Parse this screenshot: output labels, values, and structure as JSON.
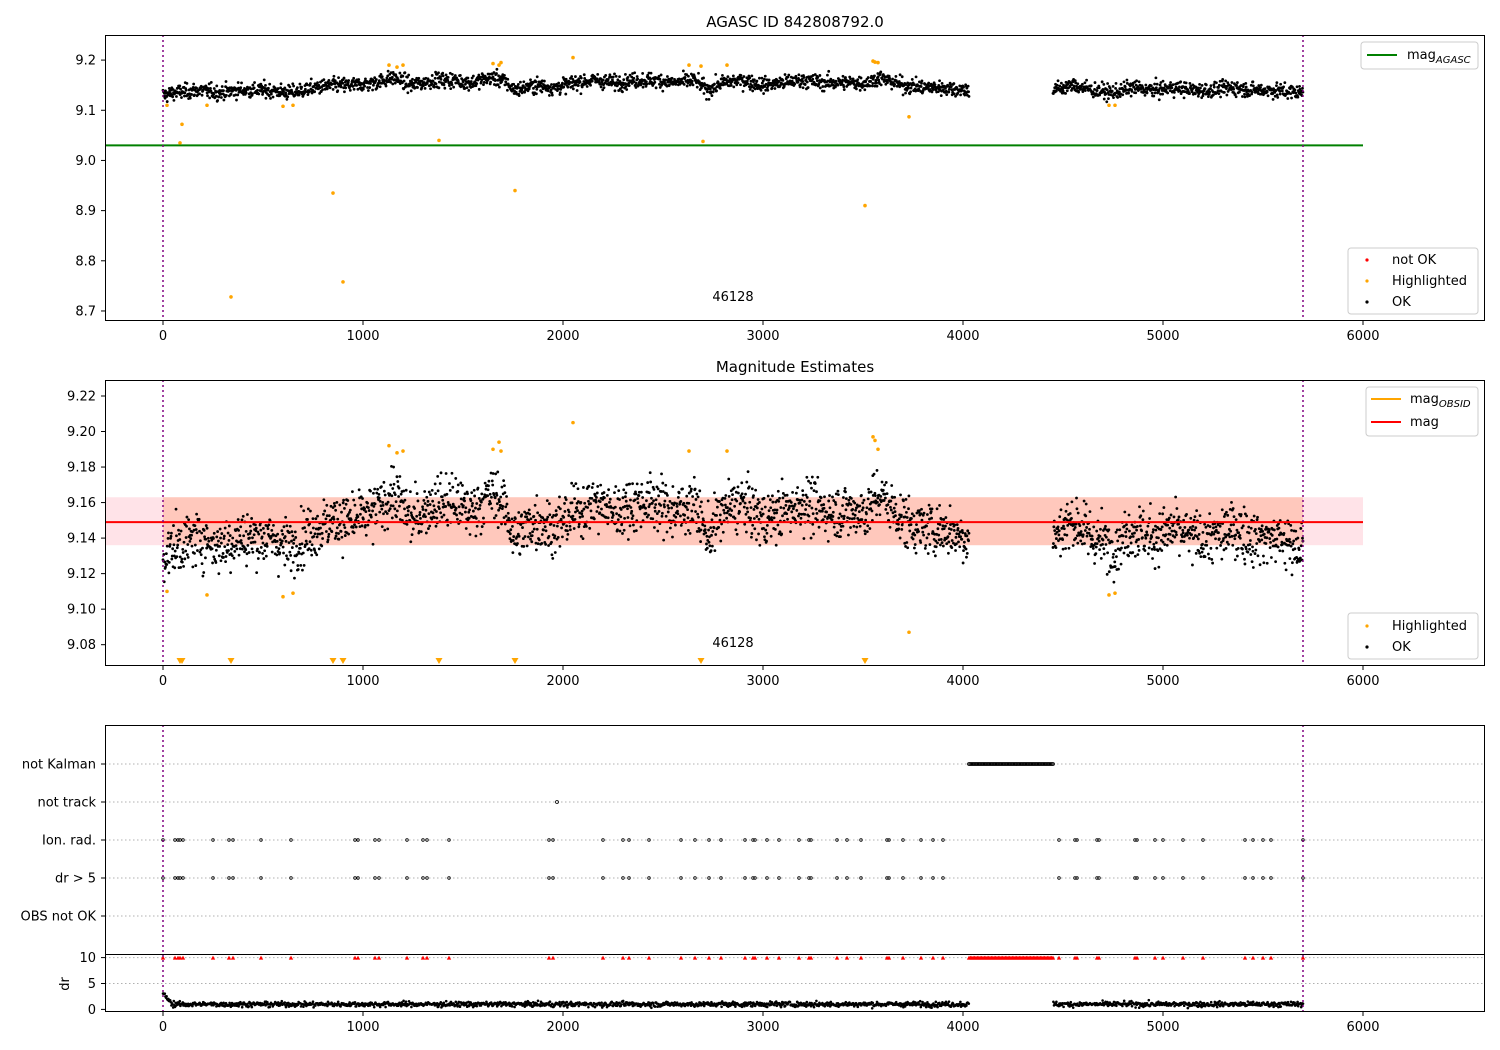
{
  "figure": {
    "background": "#ffffff"
  },
  "colors": {
    "ok": "#000000",
    "highlighted": "#ffa500",
    "not_ok": "#ff0000",
    "agasc_line": "#008000",
    "obsid_line": "#ffa500",
    "mag_line": "#ff0000",
    "band_fill": "#ffc0cb",
    "obs_band_fill": "#ffa07a",
    "epoch_line": "#800080",
    "grid": "#b0b0b0"
  },
  "chart_data": [
    {
      "id": "agasc",
      "type": "scatter",
      "title": "AGASC ID 842808792.0",
      "xlim": [
        -290,
        6610
      ],
      "ylim": [
        8.68,
        9.25
      ],
      "xticks": [
        0,
        1000,
        2000,
        3000,
        4000,
        5000,
        6000
      ],
      "xtick_labels": [
        "0",
        "1000",
        "2000",
        "3000",
        "4000",
        "5000",
        "6000"
      ],
      "yticks": [
        8.7,
        8.8,
        8.9,
        9.0,
        9.1,
        9.2
      ],
      "ytick_labels": [
        "8.7",
        "8.8",
        "8.9",
        "9.0",
        "9.1",
        "9.2"
      ],
      "epoch_lines_x": [
        0,
        5700
      ],
      "annotation": {
        "text": "46128",
        "x": 2850,
        "y": 8.7
      },
      "mag_agasc": {
        "value": 9.03,
        "x_range": [
          -290,
          6000
        ]
      },
      "ok_segments": [
        {
          "x": [
            0,
            60,
            180,
            280,
            380,
            520,
            640,
            760,
            860,
            960,
            1060,
            1150,
            1250,
            1350,
            1450,
            1540,
            1640,
            1700,
            1760,
            1860,
            1960,
            2060,
            2160,
            2260,
            2360,
            2460,
            2560,
            2660,
            2720,
            2800,
            2900,
            3000,
            3100,
            3200,
            3300,
            3400,
            3520,
            3580,
            3700,
            3800,
            3900,
            4030
          ],
          "y": [
            9.13,
            9.135,
            9.14,
            9.135,
            9.14,
            9.14,
            9.135,
            9.145,
            9.15,
            9.15,
            9.155,
            9.165,
            9.15,
            9.16,
            9.16,
            9.155,
            9.165,
            9.16,
            9.14,
            9.15,
            9.145,
            9.155,
            9.16,
            9.155,
            9.16,
            9.16,
            9.155,
            9.16,
            9.14,
            9.155,
            9.16,
            9.15,
            9.155,
            9.16,
            9.155,
            9.155,
            9.155,
            9.165,
            9.15,
            9.145,
            9.145,
            9.14
          ]
        },
        {
          "x": [
            4450,
            4550,
            4650,
            4750,
            4850,
            4950,
            5050,
            5150,
            5250,
            5350,
            5450,
            5550,
            5700
          ],
          "y": [
            9.14,
            9.15,
            9.14,
            9.135,
            9.145,
            9.14,
            9.145,
            9.14,
            9.14,
            9.145,
            9.14,
            9.14,
            9.135
          ]
        }
      ],
      "ok_spread": 0.014,
      "highlighted": {
        "x": [
          20,
          85,
          95,
          220,
          340,
          600,
          650,
          850,
          900,
          1130,
          1170,
          1200,
          1380,
          1650,
          1680,
          1690,
          1760,
          2050,
          2630,
          2690,
          2700,
          2820,
          3510,
          3550,
          3560,
          3575,
          3730,
          4730,
          4760
        ],
        "y": [
          9.11,
          9.035,
          9.072,
          9.11,
          8.728,
          9.108,
          9.11,
          8.935,
          8.758,
          9.19,
          9.186,
          9.19,
          9.04,
          9.193,
          9.19,
          9.195,
          8.94,
          9.205,
          9.19,
          9.188,
          9.038,
          9.19,
          8.91,
          9.198,
          9.196,
          9.195,
          9.087,
          9.11,
          9.11
        ]
      },
      "legend_top": {
        "position": "upper right",
        "entries": [
          {
            "label": "mag",
            "subscript": "AGASC"
          }
        ]
      },
      "legend_bottom": {
        "position": "lower right",
        "entries": [
          {
            "label": "not OK"
          },
          {
            "label": "Highlighted"
          },
          {
            "label": "OK"
          }
        ]
      }
    },
    {
      "id": "estimates",
      "type": "scatter",
      "title": "Magnitude Estimates",
      "xlim": [
        -290,
        6610
      ],
      "ylim": [
        9.068,
        9.229
      ],
      "xticks": [
        0,
        1000,
        2000,
        3000,
        4000,
        5000,
        6000
      ],
      "xtick_labels": [
        "0",
        "1000",
        "2000",
        "3000",
        "4000",
        "5000",
        "6000"
      ],
      "yticks": [
        9.08,
        9.1,
        9.12,
        9.14,
        9.16,
        9.18,
        9.2,
        9.22
      ],
      "ytick_labels": [
        "9.08",
        "9.10",
        "9.12",
        "9.14",
        "9.16",
        "9.18",
        "9.20",
        "9.22"
      ],
      "epoch_lines_x": [
        0,
        5700
      ],
      "annotation": {
        "text": "46128",
        "x": 2850,
        "y": 9.076
      },
      "mag": {
        "value": 9.149,
        "band": [
          9.136,
          9.163
        ],
        "x_range": [
          -290,
          6000
        ]
      },
      "mag_obsid": {
        "value": 9.149,
        "band": [
          9.136,
          9.163
        ],
        "x_range": [
          0,
          5700
        ]
      },
      "ok_segments": [
        {
          "x": [
            0,
            60,
            180,
            280,
            380,
            520,
            640,
            760,
            860,
            960,
            1060,
            1150,
            1250,
            1350,
            1450,
            1540,
            1640,
            1700,
            1760,
            1860,
            1960,
            2060,
            2160,
            2260,
            2360,
            2460,
            2560,
            2660,
            2720,
            2800,
            2900,
            3000,
            3100,
            3200,
            3300,
            3400,
            3520,
            3580,
            3700,
            3800,
            3900,
            4030
          ],
          "y": [
            9.13,
            9.135,
            9.14,
            9.135,
            9.14,
            9.14,
            9.135,
            9.145,
            9.15,
            9.15,
            9.155,
            9.165,
            9.15,
            9.16,
            9.16,
            9.155,
            9.165,
            9.16,
            9.14,
            9.15,
            9.145,
            9.155,
            9.16,
            9.155,
            9.16,
            9.16,
            9.155,
            9.16,
            9.14,
            9.155,
            9.16,
            9.15,
            9.155,
            9.16,
            9.155,
            9.155,
            9.155,
            9.165,
            9.15,
            9.145,
            9.145,
            9.14
          ]
        },
        {
          "x": [
            4450,
            4550,
            4650,
            4750,
            4850,
            4950,
            5050,
            5150,
            5250,
            5350,
            5450,
            5550,
            5700
          ],
          "y": [
            9.14,
            9.15,
            9.14,
            9.135,
            9.145,
            9.14,
            9.145,
            9.14,
            9.14,
            9.145,
            9.14,
            9.14,
            9.135
          ]
        }
      ],
      "ok_spread": 0.014,
      "highlighted": {
        "x": [
          20,
          220,
          600,
          650,
          1130,
          1170,
          1200,
          1650,
          1680,
          1690,
          2050,
          2630,
          2820,
          3550,
          3560,
          3575,
          3730,
          4730,
          4760
        ],
        "y": [
          9.11,
          9.108,
          9.107,
          9.109,
          9.192,
          9.188,
          9.189,
          9.19,
          9.194,
          9.189,
          9.205,
          9.189,
          9.189,
          9.197,
          9.195,
          9.19,
          9.087,
          9.108,
          9.109
        ]
      },
      "clipped_low": {
        "x": [
          85,
          95,
          340,
          850,
          900,
          1380,
          1760,
          2690,
          3510
        ]
      },
      "legend_top": {
        "position": "upper right",
        "entries": [
          {
            "label": "mag",
            "subscript": "OBSID"
          },
          {
            "label": "mag"
          }
        ]
      },
      "legend_bottom": {
        "position": "lower right",
        "entries": [
          {
            "label": "Highlighted"
          },
          {
            "label": "OK"
          }
        ]
      }
    },
    {
      "id": "flags",
      "type": "scatter",
      "xlim": [
        -290,
        6610
      ],
      "categories": [
        "not Kalman",
        "not track",
        "Ion. rad.",
        "dr > 5",
        "OBS not OK"
      ],
      "epoch_lines_x": [
        0,
        5700
      ],
      "not_kalman": {
        "x_range": [
          4030,
          4450
        ]
      },
      "not_track": {
        "x": [
          1970
        ]
      },
      "flag_x": [
        0,
        60,
        75,
        85,
        100,
        250,
        330,
        350,
        490,
        640,
        960,
        975,
        1060,
        1080,
        1220,
        1300,
        1320,
        1430,
        1930,
        1950,
        2200,
        2300,
        2330,
        2430,
        2590,
        2660,
        2730,
        2790,
        2910,
        2950,
        2960,
        3020,
        3080,
        3180,
        3230,
        3240,
        3370,
        3420,
        3490,
        3620,
        3630,
        3700,
        3790,
        3850,
        3900,
        4480,
        4560,
        4570,
        4670,
        4680,
        4860,
        4870,
        4960,
        5000,
        5100,
        5200,
        5410,
        5450,
        5500,
        5540,
        5700
      ]
    },
    {
      "id": "dr",
      "type": "scatter",
      "ylabel": "dr",
      "xlim": [
        -290,
        6610
      ],
      "ylim": [
        -0.5,
        10.5
      ],
      "yticks": [
        0,
        5,
        10
      ],
      "ytick_labels": [
        "0",
        "5",
        "10"
      ],
      "xticks": [
        0,
        1000,
        2000,
        3000,
        4000,
        5000,
        6000
      ],
      "xtick_labels": [
        "0",
        "1000",
        "2000",
        "3000",
        "4000",
        "5000",
        "6000"
      ],
      "epoch_lines_x": [
        0,
        5700
      ],
      "typical_dr": 1.0,
      "start_dr": [
        3.0,
        2.4,
        2.0,
        1.6
      ],
      "gap_range": [
        4030,
        4450
      ],
      "clipped_high_x": [
        0,
        60,
        75,
        85,
        100,
        250,
        330,
        350,
        490,
        640,
        960,
        975,
        1060,
        1080,
        1220,
        1300,
        1320,
        1430,
        1930,
        1950,
        2200,
        2300,
        2330,
        2430,
        2590,
        2660,
        2730,
        2790,
        2910,
        2950,
        2960,
        3020,
        3080,
        3180,
        3230,
        3240,
        3370,
        3420,
        3490,
        3620,
        3630,
        3700,
        3790,
        3850,
        3900,
        4480,
        4560,
        4570,
        4670,
        4680,
        4860,
        4870,
        4960,
        5000,
        5100,
        5200,
        5410,
        5450,
        5500,
        5540,
        5700
      ]
    }
  ]
}
